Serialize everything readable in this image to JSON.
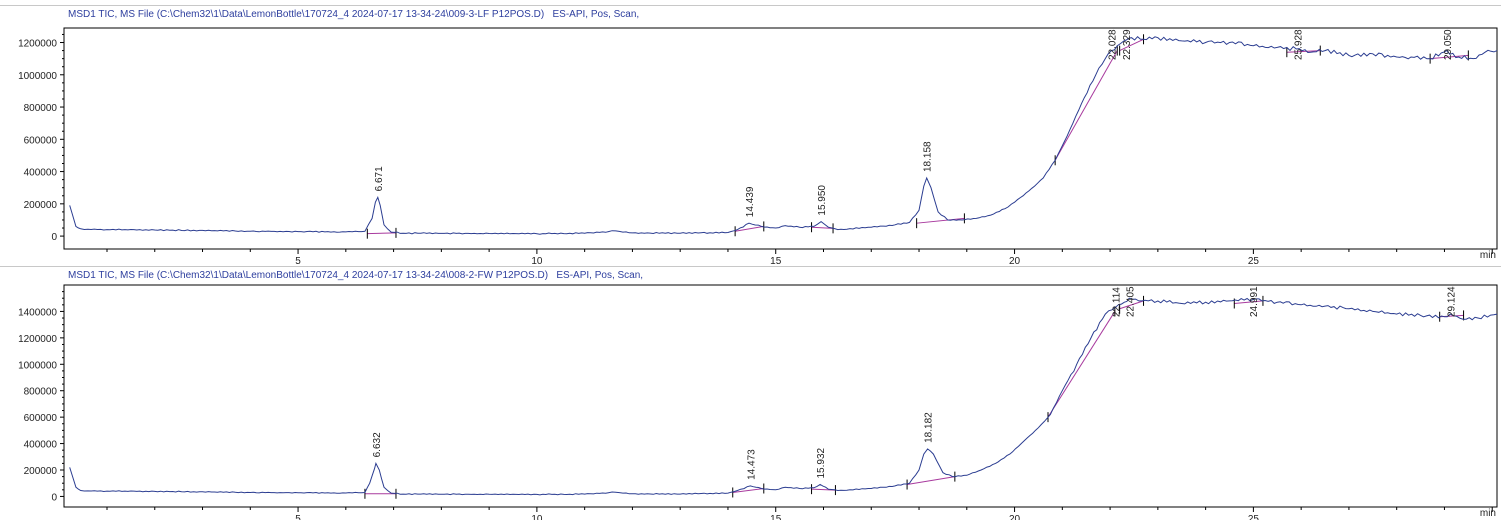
{
  "colors": {
    "trace": "#2b3d91",
    "baseline": "#a83a9e",
    "axis": "#000000",
    "header": "#2d3e9e"
  },
  "chart_data": [
    {
      "type": "line",
      "title": "MSD1 TIC, MS File (C:\\Chem32\\1\\Data\\LemonBottle\\170724_4 2024-07-17 13-34-24\\009-3-LF P12POS.D)   ES-API, Pos, Scan,",
      "xlabel": "min",
      "ylabel": "",
      "xlim": [
        0.1,
        30.1
      ],
      "ylim": [
        -80000,
        1290000
      ],
      "xticks": [
        5,
        10,
        15,
        20,
        25
      ],
      "yticks": [
        0,
        200000,
        400000,
        600000,
        800000,
        1000000,
        1200000
      ],
      "ytick_labels": [
        "0",
        "200000",
        "400000",
        "600000",
        "800000",
        "1000000",
        "1200000"
      ],
      "series": [
        {
          "x": [
            0.22,
            0.28,
            0.35,
            0.45,
            0.6,
            1,
            2,
            3,
            4,
            5,
            6,
            6.4,
            6.55,
            6.62,
            6.67,
            6.72,
            6.8,
            6.95,
            7.2,
            8,
            9,
            10,
            11,
            11.5,
            11.65,
            11.8,
            12,
            13,
            14,
            14.2,
            14.44,
            14.7,
            15,
            15.2,
            15.5,
            15.8,
            15.95,
            16.1,
            16.3,
            17,
            17.5,
            17.8,
            18,
            18.1,
            18.16,
            18.25,
            18.4,
            18.6,
            18.9,
            19.2,
            19.5,
            19.8,
            20,
            20.3,
            20.6,
            20.85,
            21.1,
            21.4,
            21.7,
            21.9,
            22.03,
            22.15,
            22.29,
            22.45,
            22.7,
            23,
            23.5,
            24,
            24.5,
            25,
            25.5,
            25.9,
            26.2,
            26.5,
            27,
            27.5,
            28,
            28.3,
            28.7,
            29.05,
            29.3,
            29.6,
            29.85,
            30.1
          ],
          "values": [
            190000,
            130000,
            60000,
            45000,
            42000,
            40000,
            38000,
            35000,
            30000,
            28000,
            26000,
            30000,
            110000,
            210000,
            240000,
            190000,
            70000,
            25000,
            18000,
            17000,
            16000,
            15000,
            18000,
            28000,
            32000,
            25000,
            20000,
            18000,
            22000,
            40000,
            80000,
            60000,
            50000,
            65000,
            55000,
            60000,
            90000,
            55000,
            40000,
            55000,
            70000,
            85000,
            160000,
            310000,
            360000,
            300000,
            150000,
            100000,
            100000,
            110000,
            130000,
            170000,
            210000,
            280000,
            360000,
            470000,
            620000,
            820000,
            1000000,
            1100000,
            1150000,
            1180000,
            1210000,
            1230000,
            1220000,
            1230000,
            1210000,
            1200000,
            1200000,
            1180000,
            1170000,
            1160000,
            1140000,
            1150000,
            1120000,
            1130000,
            1110000,
            1110000,
            1100000,
            1150000,
            1110000,
            1100000,
            1140000,
            1150000
          ]
        }
      ],
      "peak_labels": [
        {
          "x": 6.671,
          "text": "6.671",
          "y": 240000
        },
        {
          "x": 14.439,
          "text": "14.439",
          "y": 80000
        },
        {
          "x": 15.95,
          "text": "15.950",
          "y": 90000
        },
        {
          "x": 18.158,
          "text": "18.158",
          "y": 360000
        },
        {
          "x": 22.028,
          "text": "22.028",
          "y": 1150000
        },
        {
          "x": 22.329,
          "text": "22.329",
          "y": 1180000
        },
        {
          "x": 25.928,
          "text": "25.928",
          "y": 1160000
        },
        {
          "x": 29.05,
          "text": "29.050",
          "y": 1150000
        }
      ],
      "baselines": [
        [
          6.45,
          15000,
          7.05,
          20000
        ],
        [
          14.15,
          30000,
          14.75,
          60000
        ],
        [
          15.75,
          55000,
          16.2,
          48000
        ],
        [
          17.95,
          80000,
          18.95,
          110000
        ],
        [
          20.85,
          470000,
          22.15,
          1150000
        ],
        [
          22.2,
          1150000,
          22.7,
          1220000
        ],
        [
          25.7,
          1140000,
          26.4,
          1150000
        ],
        [
          28.7,
          1100000,
          29.5,
          1120000
        ]
      ]
    },
    {
      "type": "line",
      "title": "MSD1 TIC, MS File (C:\\Chem32\\1\\Data\\LemonBottle\\170724_4 2024-07-17 13-34-24\\008-2-FW P12POS.D)   ES-API, Pos, Scan,",
      "xlabel": "min",
      "ylabel": "",
      "xlim": [
        0.1,
        30.1
      ],
      "ylim": [
        -80000,
        1600000
      ],
      "xticks": [
        5,
        10,
        15,
        20,
        25
      ],
      "yticks": [
        0,
        200000,
        400000,
        600000,
        800000,
        1000000,
        1200000,
        1400000
      ],
      "ytick_labels": [
        "0",
        "200000",
        "400000",
        "600000",
        "800000",
        "1000000",
        "1200000",
        "1400000"
      ],
      "series": [
        {
          "x": [
            0.22,
            0.28,
            0.35,
            0.45,
            0.6,
            1,
            2,
            3,
            4,
            5,
            6,
            6.4,
            6.5,
            6.6,
            6.63,
            6.7,
            6.8,
            6.95,
            7.2,
            8,
            9,
            10,
            11,
            11.5,
            11.65,
            11.8,
            12,
            13,
            14,
            14.2,
            14.47,
            14.7,
            15,
            15.2,
            15.5,
            15.8,
            15.93,
            16.1,
            16.3,
            17,
            17.5,
            17.8,
            18,
            18.1,
            18.18,
            18.3,
            18.5,
            18.7,
            19,
            19.3,
            19.6,
            19.9,
            20.2,
            20.5,
            20.75,
            21,
            21.3,
            21.6,
            21.9,
            22.11,
            22.3,
            22.4,
            22.6,
            23,
            23.5,
            24,
            24.5,
            24.99,
            25.5,
            26,
            26.5,
            27,
            27.5,
            28,
            28.5,
            29,
            29.12,
            29.4,
            29.7,
            30.1
          ],
          "values": [
            220000,
            150000,
            70000,
            45000,
            42000,
            40000,
            38000,
            35000,
            30000,
            28000,
            26000,
            30000,
            100000,
            210000,
            250000,
            200000,
            70000,
            25000,
            18000,
            17000,
            16000,
            15000,
            18000,
            28000,
            32000,
            25000,
            20000,
            18000,
            25000,
            45000,
            80000,
            60000,
            50000,
            70000,
            60000,
            65000,
            90000,
            55000,
            45000,
            60000,
            80000,
            100000,
            200000,
            320000,
            360000,
            320000,
            180000,
            150000,
            160000,
            200000,
            250000,
            320000,
            420000,
            520000,
            620000,
            800000,
            1000000,
            1200000,
            1380000,
            1430000,
            1470000,
            1500000,
            1480000,
            1480000,
            1460000,
            1470000,
            1480000,
            1490000,
            1470000,
            1450000,
            1440000,
            1420000,
            1400000,
            1380000,
            1370000,
            1360000,
            1380000,
            1340000,
            1350000,
            1380000
          ],
          "name": ""
        }
      ],
      "peak_labels": [
        {
          "x": 6.632,
          "text": "6.632",
          "y": 250000
        },
        {
          "x": 14.473,
          "text": "14.473",
          "y": 80000
        },
        {
          "x": 15.932,
          "text": "15.932",
          "y": 90000
        },
        {
          "x": 18.182,
          "text": "18.182",
          "y": 360000
        },
        {
          "x": 22.114,
          "text": "22.114",
          "y": 1430000
        },
        {
          "x": 22.405,
          "text": "22.405",
          "y": 1500000
        },
        {
          "x": 24.991,
          "text": "24.991",
          "y": 1490000
        },
        {
          "x": 29.124,
          "text": "29.124",
          "y": 1380000
        }
      ],
      "baselines": [
        [
          6.4,
          20000,
          7.05,
          20000
        ],
        [
          14.1,
          30000,
          14.75,
          60000
        ],
        [
          15.75,
          55000,
          16.25,
          48000
        ],
        [
          17.75,
          90000,
          18.75,
          150000
        ],
        [
          20.7,
          600000,
          22.1,
          1400000
        ],
        [
          22.2,
          1420000,
          22.7,
          1480000
        ],
        [
          24.6,
          1460000,
          25.2,
          1480000
        ],
        [
          28.9,
          1360000,
          29.4,
          1370000
        ]
      ]
    }
  ]
}
